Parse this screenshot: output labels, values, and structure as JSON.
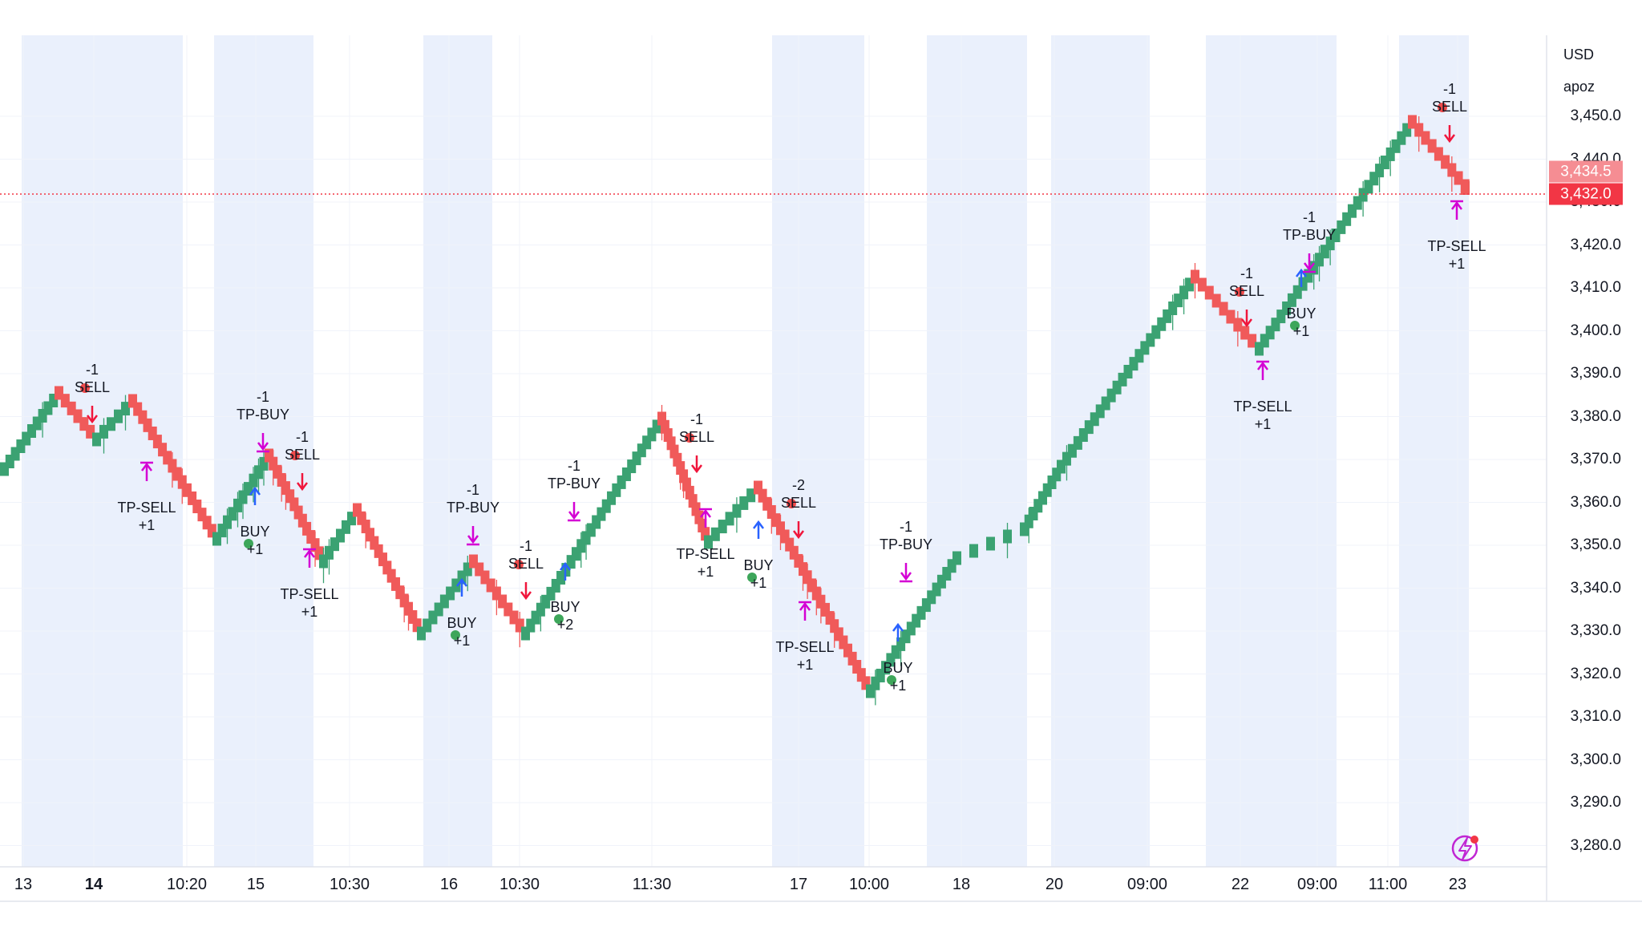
{
  "price_scale": {
    "currency": "USD",
    "mode": "apoz",
    "ticks": [
      "3,450.0",
      "3,440.0",
      "3,430.0",
      "3,420.0",
      "3,410.0",
      "3,400.0",
      "3,390.0",
      "3,380.0",
      "3,370.0",
      "3,360.0",
      "3,350.0",
      "3,340.0",
      "3,330.0",
      "3,320.0",
      "3,310.0",
      "3,300.0",
      "3,290.0",
      "3,280.0"
    ],
    "last_price_label": "3,432.0",
    "prev_price_label": "3,434.5"
  },
  "time_axis": {
    "labels": [
      {
        "text": "13",
        "bold": false
      },
      {
        "text": "14",
        "bold": true
      },
      {
        "text": "10:20",
        "bold": false
      },
      {
        "text": "15",
        "bold": false
      },
      {
        "text": "10:30",
        "bold": false
      },
      {
        "text": "16",
        "bold": false
      },
      {
        "text": "10:30",
        "bold": false
      },
      {
        "text": "11:30",
        "bold": false
      },
      {
        "text": "17",
        "bold": false
      },
      {
        "text": "10:00",
        "bold": false
      },
      {
        "text": "18",
        "bold": false
      },
      {
        "text": "20",
        "bold": false
      },
      {
        "text": "09:00",
        "bold": false
      },
      {
        "text": "22",
        "bold": false
      },
      {
        "text": "09:00",
        "bold": false
      },
      {
        "text": "11:00",
        "bold": false
      },
      {
        "text": "23",
        "bold": false
      }
    ]
  },
  "colors": {
    "up": "#3ba272",
    "down": "#f05a5a",
    "session_band": "#eaf0fc",
    "sell_arrow": "#f0163c",
    "buy_arrow": "#2962ff",
    "tp_arrow": "#d400d4",
    "last_price_tag": "#f23645",
    "prev_price_tag": "#f58d93",
    "grid": "#f0f3fa"
  },
  "icons": [
    "lightning-icon"
  ],
  "signals": [
    {
      "type": "sell",
      "qty": "-1",
      "label": "SELL"
    },
    {
      "type": "tp-sell",
      "qty": "+1",
      "label": "TP-SELL"
    },
    {
      "type": "buy",
      "qty": "+1",
      "label": "BUY"
    },
    {
      "type": "tp-buy",
      "qty": "-1",
      "label": "TP-BUY"
    },
    {
      "type": "sell",
      "qty": "-1",
      "label": "SELL"
    },
    {
      "type": "tp-sell",
      "qty": "+1",
      "label": "TP-SELL"
    },
    {
      "type": "buy",
      "qty": "+1",
      "label": "BUY"
    },
    {
      "type": "tp-buy",
      "qty": "-1",
      "label": "TP-BUY"
    },
    {
      "type": "sell",
      "qty": "-1",
      "label": "SELL"
    },
    {
      "type": "buy",
      "qty": "+2",
      "label": "BUY"
    },
    {
      "type": "tp-buy",
      "qty": "-1",
      "label": "TP-BUY"
    },
    {
      "type": "sell",
      "qty": "-1",
      "label": "SELL"
    },
    {
      "type": "tp-sell",
      "qty": "+1",
      "label": "TP-SELL"
    },
    {
      "type": "buy",
      "qty": "+1",
      "label": "BUY"
    },
    {
      "type": "sell",
      "qty": "-2",
      "label": "SELL"
    },
    {
      "type": "tp-sell",
      "qty": "+1",
      "label": "TP-SELL"
    },
    {
      "type": "buy",
      "qty": "+1",
      "label": "BUY"
    },
    {
      "type": "tp-buy",
      "qty": "-1",
      "label": "TP-BUY"
    },
    {
      "type": "sell",
      "qty": "-1",
      "label": "SELL"
    },
    {
      "type": "tp-sell",
      "qty": "+1",
      "label": "TP-SELL"
    },
    {
      "type": "buy",
      "qty": "+1",
      "label": "BUY"
    },
    {
      "type": "tp-buy",
      "qty": "-1",
      "label": "TP-BUY"
    },
    {
      "type": "sell",
      "qty": "-1",
      "label": "SELL"
    },
    {
      "type": "tp-sell",
      "qty": "+1",
      "label": "TP-SELL"
    }
  ]
}
